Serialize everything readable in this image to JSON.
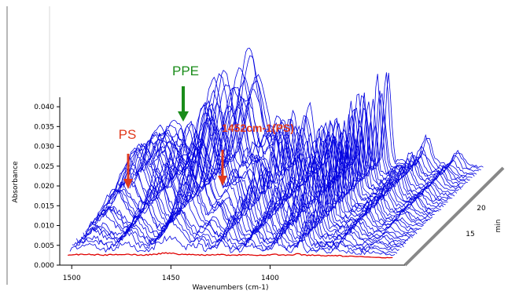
{
  "chart_data": {
    "type": "waterfall-3d-spectra",
    "title": "",
    "xlabel": "Wavenumbers (cm-1)",
    "ylabel": "Absorbance",
    "zlabel": "min",
    "xlim": [
      1510,
      1330
    ],
    "ylim": [
      0.0,
      0.042
    ],
    "x_ticks": [
      1500,
      1450,
      1400
    ],
    "y_ticks": [
      0.0,
      0.005,
      0.01,
      0.015,
      0.02,
      0.025,
      0.03,
      0.035,
      0.04
    ],
    "y_tick_labels": [
      "0.000",
      "0.005",
      "0.010",
      "0.015",
      "0.020",
      "0.025",
      "0.030",
      "0.035",
      "0.040"
    ],
    "z_ticks": [
      15,
      20
    ],
    "grid": false,
    "series_color": "#0000e0",
    "first_trace_color": "#e00000",
    "trace_count": 42,
    "peaks": [
      {
        "x": 1493,
        "h": 0.012,
        "w": 7
      },
      {
        "x": 1474,
        "h": 0.016,
        "w": 5
      },
      {
        "x": 1452,
        "h": 0.03,
        "w": 7
      },
      {
        "x": 1438,
        "h": 0.011,
        "w": 4
      },
      {
        "x": 1426,
        "h": 0.015,
        "w": 3
      },
      {
        "x": 1412,
        "h": 0.012,
        "w": 3
      },
      {
        "x": 1398,
        "h": 0.018,
        "w": 2.5
      },
      {
        "x": 1386,
        "h": 0.022,
        "w": 2
      },
      {
        "x": 1366,
        "h": 0.008,
        "w": 3
      },
      {
        "x": 1350,
        "h": 0.006,
        "w": 3
      }
    ],
    "annotations": [
      {
        "text": "PPE",
        "color": "#1a8c1a",
        "x": 1450,
        "y": 0.031
      },
      {
        "text": "PS",
        "color": "#e03a1e",
        "x": 1493,
        "y": 0.017
      },
      {
        "text": "1452cm-1(PS)",
        "color": "#e03a1e",
        "x": 1474,
        "y": 0.018
      }
    ]
  }
}
